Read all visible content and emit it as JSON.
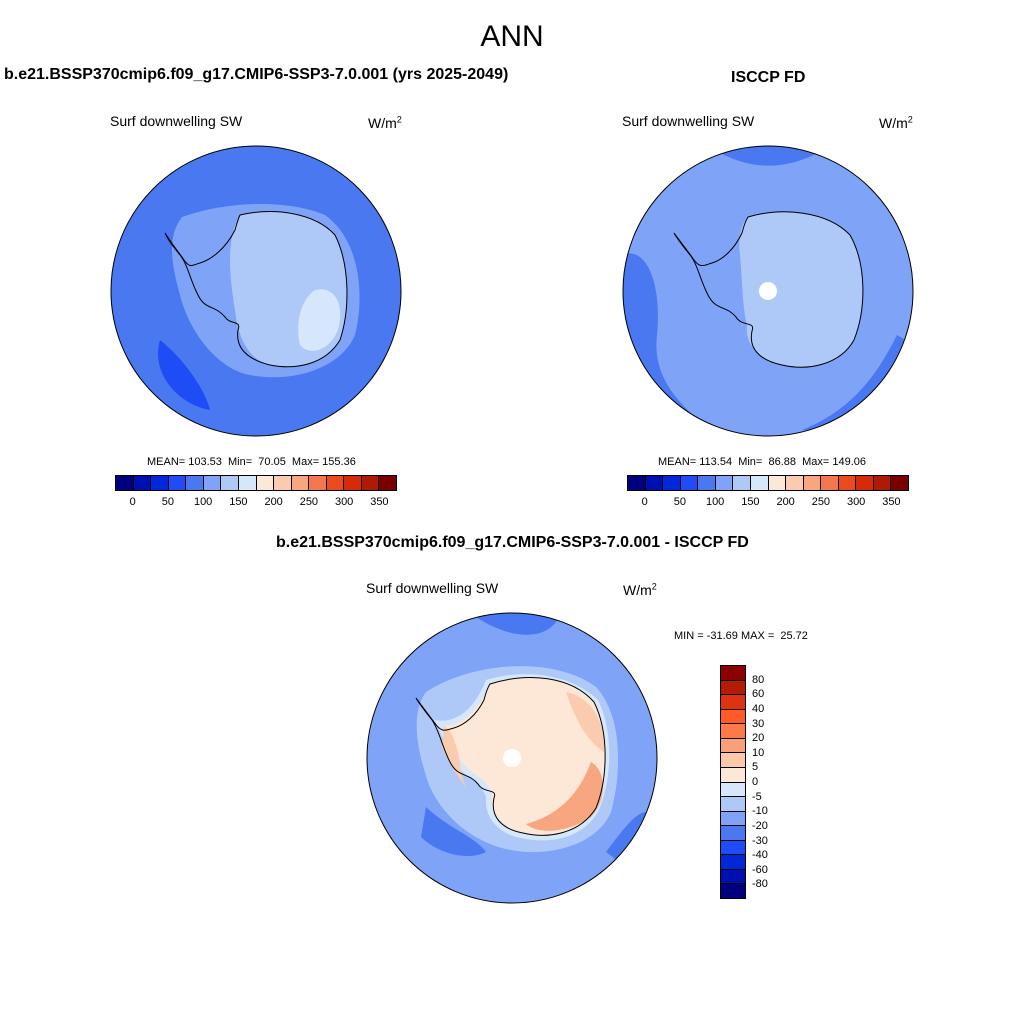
{
  "figure": {
    "title": "ANN"
  },
  "panels": {
    "model": {
      "title": "b.e21.BSSP370cmip6.f09_g17.CMIP6-SSP3-7.0.001 (yrs 2025-2049)",
      "variable": "Surf downwelling SW",
      "units": "W/m",
      "units_exp": "2",
      "stats": "MEAN= 103.53  Min=  70.05  Max= 155.36"
    },
    "obs": {
      "title": "ISCCP FD",
      "variable": "Surf downwelling SW",
      "units": "W/m",
      "units_exp": "2",
      "stats": "MEAN= 113.54  Min=  86.88  Max= 149.06"
    },
    "diff": {
      "title": "b.e21.BSSP370cmip6.f09_g17.CMIP6-SSP3-7.0.001 - ISCCP FD",
      "variable": "Surf downwelling SW",
      "units": "W/m",
      "units_exp": "2",
      "stats": "MIN = -31.69 MAX =  25.72"
    }
  },
  "colorbars": {
    "absolute": {
      "colors": [
        "#00007f",
        "#0010b0",
        "#0028d8",
        "#1e4cf5",
        "#4a78f0",
        "#7ea3f7",
        "#aec8f8",
        "#d6e6fb",
        "#fde8d8",
        "#fbcbb0",
        "#f8a680",
        "#f4784c",
        "#ee4a20",
        "#d72a08",
        "#b01a02",
        "#7a0000"
      ],
      "ticks": [
        "0",
        "50",
        "100",
        "150",
        "200",
        "250",
        "300",
        "350"
      ]
    },
    "difference": {
      "colors": [
        "#8b0000",
        "#b51c05",
        "#dd3310",
        "#ff5a28",
        "#fb7a48",
        "#f8a07a",
        "#fbc8a8",
        "#fde8d8",
        "#d6e6fb",
        "#aec8f8",
        "#7ea3f7",
        "#4a78f0",
        "#1e4cf5",
        "#0028d8",
        "#0010b0",
        "#00007f"
      ],
      "ticks": [
        "80",
        "60",
        "40",
        "30",
        "20",
        "10",
        "5",
        "0",
        "-5",
        "-10",
        "-20",
        "-30",
        "-40",
        "-60",
        "-80"
      ]
    }
  },
  "map_colors": {
    "ocean_model": "#4a78f0",
    "ocean_model_dark": "#1e4cf5",
    "shelf": "#7ea3f7",
    "land_interior": "#aec8f8",
    "land_brightest": "#d6e6fb",
    "ocean_obs": "#7ea3f7",
    "ocean_obs_dark": "#4a78f0",
    "diff_ocean": "#7ea3f7",
    "diff_ocean_dark": "#4a78f0",
    "diff_band": "#aec8f8",
    "diff_coast": "#d6e6fb",
    "diff_land": "#fde8d8",
    "diff_land_mid": "#fbcbb0",
    "diff_land_hot": "#f8a680"
  }
}
